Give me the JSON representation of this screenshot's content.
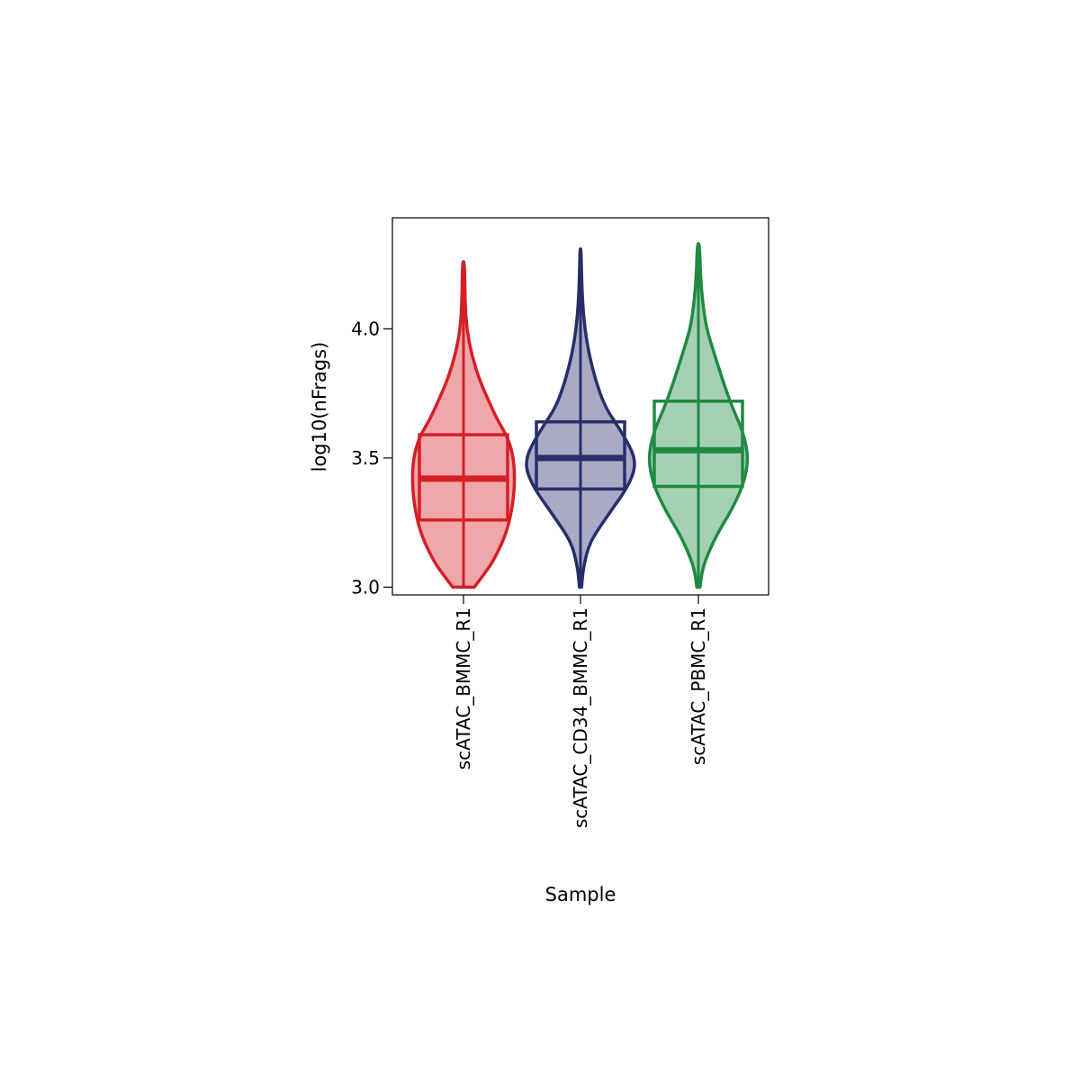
{
  "chart_data": {
    "type": "violin",
    "xlabel": "Sample",
    "ylabel": "log10(nFrags)",
    "ylim": [
      2.97,
      4.43
    ],
    "yticks": [
      "3.0",
      "3.5",
      "4.0"
    ],
    "grid": false,
    "legend": "none",
    "categories": [
      "scATAC_BMMC_R1",
      "scATAC_CD34_BMMC_R1",
      "scATAC_PBMC_R1"
    ],
    "series": [
      {
        "category": "scATAC_BMMC_R1",
        "color": "#D51F26",
        "fill": "#EFA7AA",
        "min": 3.0,
        "q1": 3.26,
        "median": 3.42,
        "q3": 3.59,
        "max": 4.26,
        "density": [
          [
            3.0,
            0.2
          ],
          [
            3.05,
            0.38
          ],
          [
            3.1,
            0.55
          ],
          [
            3.2,
            0.78
          ],
          [
            3.3,
            0.9
          ],
          [
            3.4,
            0.95
          ],
          [
            3.5,
            0.93
          ],
          [
            3.58,
            0.82
          ],
          [
            3.65,
            0.62
          ],
          [
            3.72,
            0.47
          ],
          [
            3.8,
            0.3
          ],
          [
            3.9,
            0.15
          ],
          [
            4.0,
            0.06
          ],
          [
            4.1,
            0.03
          ],
          [
            4.26,
            0.02
          ]
        ]
      },
      {
        "category": "scATAC_CD34_BMMC_R1",
        "color": "#272E6A",
        "fill": "#A8ABC3",
        "min": 3.0,
        "q1": 3.38,
        "median": 3.5,
        "q3": 3.64,
        "max": 4.31,
        "density": [
          [
            3.0,
            0.02
          ],
          [
            3.05,
            0.04
          ],
          [
            3.1,
            0.08
          ],
          [
            3.15,
            0.14
          ],
          [
            3.2,
            0.25
          ],
          [
            3.3,
            0.58
          ],
          [
            3.38,
            0.85
          ],
          [
            3.45,
            1.0
          ],
          [
            3.5,
            1.0
          ],
          [
            3.55,
            0.9
          ],
          [
            3.62,
            0.7
          ],
          [
            3.7,
            0.45
          ],
          [
            3.8,
            0.28
          ],
          [
            3.9,
            0.16
          ],
          [
            4.0,
            0.08
          ],
          [
            4.1,
            0.04
          ],
          [
            4.2,
            0.02
          ],
          [
            4.31,
            0.01
          ]
        ]
      },
      {
        "category": "scATAC_PBMC_R1",
        "color": "#208A42",
        "fill": "#A6D0B3",
        "min": 3.0,
        "q1": 3.39,
        "median": 3.53,
        "q3": 3.72,
        "max": 4.33,
        "density": [
          [
            3.0,
            0.03
          ],
          [
            3.05,
            0.06
          ],
          [
            3.1,
            0.12
          ],
          [
            3.2,
            0.33
          ],
          [
            3.3,
            0.62
          ],
          [
            3.4,
            0.84
          ],
          [
            3.5,
            0.93
          ],
          [
            3.6,
            0.83
          ],
          [
            3.7,
            0.62
          ],
          [
            3.8,
            0.45
          ],
          [
            3.9,
            0.3
          ],
          [
            4.0,
            0.15
          ],
          [
            4.1,
            0.08
          ],
          [
            4.2,
            0.04
          ],
          [
            4.33,
            0.02
          ]
        ]
      }
    ]
  }
}
